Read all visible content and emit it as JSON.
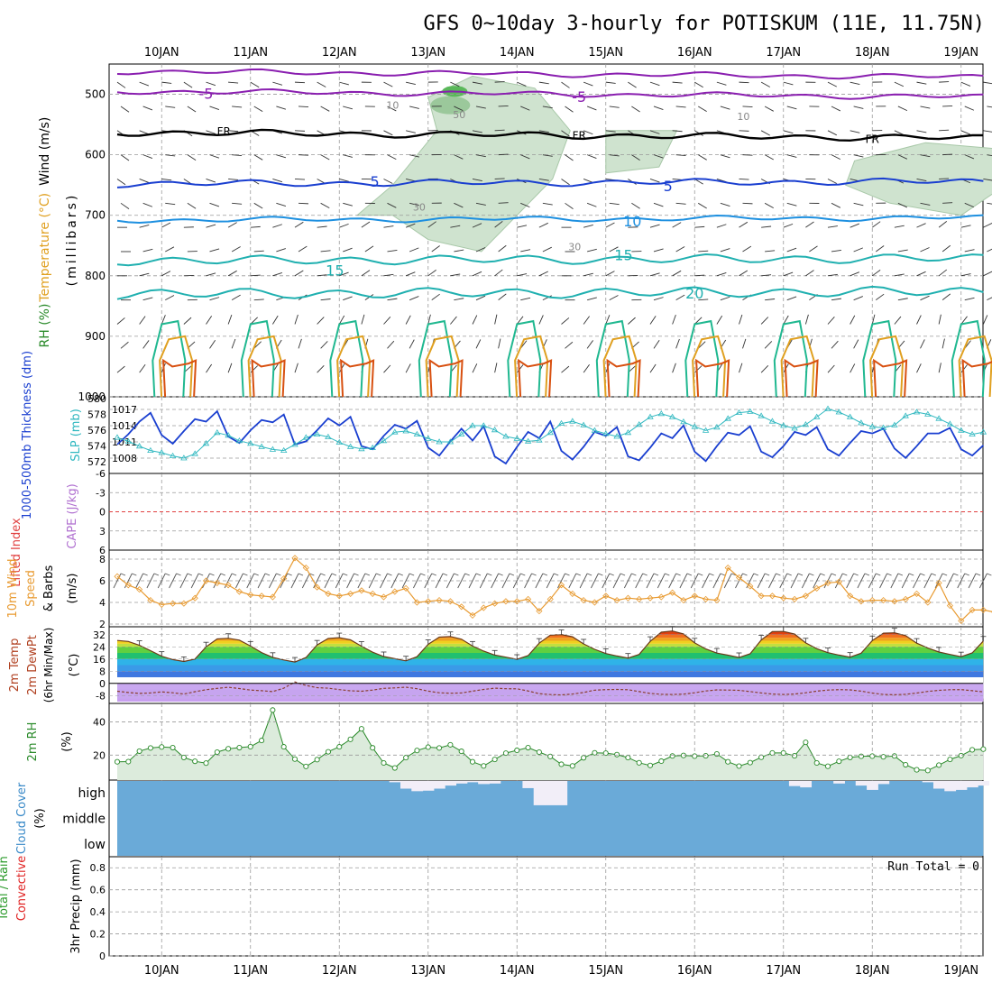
{
  "title": "GFS 0~10day 3-hourly for POTISKUM (11E, 11.75N)",
  "dates": [
    "10JAN",
    "11JAN",
    "12JAN",
    "13JAN",
    "14JAN",
    "15JAN",
    "16JAN",
    "17JAN",
    "18JAN",
    "19JAN"
  ],
  "colors": {
    "frame": "#000000",
    "grid": "#9a9a9a",
    "temp_purple": "#8a1fb0",
    "temp_blue": "#1a3fd0",
    "temp_light": "#1e90e0",
    "temp_teal": "#20b0b0",
    "temp_green": "#20b890",
    "temp_orange": "#e0a020",
    "temp_red": "#d85010",
    "rh_fill": "#cfe3cf",
    "thickness": "#1a3fd0",
    "slp": "#30b8c0",
    "wind10": "#e89a30",
    "cloud": "#6aaad8",
    "cloud_clear": "#f2eef8",
    "rh2m": "#2a8a2a",
    "lifted_zero": "#e04040",
    "cape": "#b070d0",
    "precip_total": "#2a9a2a",
    "precip_conv": "#e02020"
  },
  "chart_data": [
    {
      "type": "heatmap",
      "panel": "upper-air",
      "ylabel_parts": [
        "RH (%)",
        "Temperature (°C)",
        "Wind (m/s)"
      ],
      "yunit_label": "(millibars)",
      "y_ticks": [
        500,
        600,
        700,
        800,
        900,
        1000
      ],
      "ylim": [
        1000,
        450
      ],
      "contour_labels": [
        {
          "label": "-5",
          "level": 500,
          "day": 0.5
        },
        {
          "label": "-5",
          "level": 505,
          "day": 4.7
        },
        {
          "label": "FR",
          "level": 560,
          "day": 0.7
        },
        {
          "label": "FR",
          "level": 567,
          "day": 4.7
        },
        {
          "label": "FR",
          "level": 573,
          "day": 8.0
        },
        {
          "label": "5",
          "level": 645,
          "day": 2.4
        },
        {
          "label": "5",
          "level": 653,
          "day": 5.7
        },
        {
          "label": "10",
          "level": 711,
          "day": 5.3
        },
        {
          "label": "15",
          "level": 792,
          "day": 1.95
        },
        {
          "label": "15",
          "level": 767,
          "day": 5.2
        },
        {
          "label": "20",
          "level": 830,
          "day": 6.0
        },
        {
          "label": "50",
          "level": 532,
          "day": 3.35
        },
        {
          "label": "30",
          "level": 685,
          "day": 2.9
        },
        {
          "label": "30",
          "level": 750,
          "day": 4.65
        },
        {
          "label": "10",
          "level": 535,
          "day": 6.55
        },
        {
          "label": "10",
          "level": 516,
          "day": 2.6
        }
      ]
    },
    {
      "type": "line",
      "panel": "thickness-slp",
      "ylabel_left": "1000-500mb Thickness (dm)",
      "ylabel_right": "SLP (mb)",
      "y_ticks_left": [
        572,
        574,
        576,
        578,
        580
      ],
      "y_ticks_right": [
        1008,
        1011,
        1014,
        1017
      ],
      "ylim_left": [
        571,
        580
      ],
      "series": [
        {
          "name": "1000-500mb Thickness (dm)",
          "axis": "left",
          "values": [
            574.2,
            575.5,
            577.1,
            578.2,
            575.4,
            574.3,
            575.9,
            577.4,
            577.1,
            578.4,
            575.2,
            574.4,
            576.0,
            577.3,
            577.0,
            578.0,
            574.2,
            574.6,
            576.0,
            577.5,
            576.6,
            577.7,
            574.0,
            573.6,
            575.3,
            576.7,
            576.2,
            577.2,
            573.8,
            572.8,
            574.6,
            576.2,
            574.7,
            576.5,
            572.7,
            571.8,
            573.9,
            575.8,
            575.0,
            577.1,
            573.4,
            572.3,
            573.9,
            575.8,
            575.3,
            576.4,
            572.7,
            572.2,
            573.8,
            575.6,
            575.0,
            576.6,
            573.3,
            572.1,
            574.0,
            575.7,
            575.4,
            576.5,
            573.3,
            572.6,
            574.0,
            575.8,
            575.4,
            576.4,
            573.6,
            572.8,
            574.4,
            575.9,
            575.6,
            576.2,
            573.7,
            572.5,
            574.0,
            575.6,
            575.6,
            576.3,
            573.6,
            572.8,
            574.1
          ]
        },
        {
          "name": "SLP (mb)",
          "axis": "right",
          "values": [
            1011.8,
            1011.1,
            1010.2,
            1009.4,
            1009.0,
            1008.4,
            1008.0,
            1008.8,
            1010.7,
            1012.7,
            1012.2,
            1011.2,
            1010.7,
            1010.1,
            1009.6,
            1009.4,
            1010.5,
            1011.8,
            1012.4,
            1011.9,
            1010.9,
            1010.1,
            1009.7,
            1009.9,
            1011.2,
            1012.8,
            1013.0,
            1012.4,
            1011.6,
            1011.0,
            1011.0,
            1012.4,
            1014.0,
            1014.0,
            1013.2,
            1012.0,
            1011.6,
            1011.1,
            1011.3,
            1012.7,
            1014.4,
            1014.8,
            1014.1,
            1013.1,
            1012.5,
            1012.0,
            1012.7,
            1014.2,
            1015.6,
            1016.2,
            1015.6,
            1014.7,
            1013.8,
            1013.1,
            1013.7,
            1015.3,
            1016.4,
            1016.6,
            1015.8,
            1014.8,
            1014.0,
            1013.5,
            1014.2,
            1015.6,
            1017.1,
            1016.5,
            1015.6,
            1014.5,
            1013.8,
            1013.6,
            1014.1,
            1015.8,
            1016.5,
            1016.1,
            1015.3,
            1014.3,
            1013.1,
            1012.4,
            1012.8
          ]
        }
      ]
    },
    {
      "type": "line",
      "panel": "lifted-cape",
      "ylabel_left": "Lifted Index",
      "ylabel_right": "CAPE (J/kg)",
      "y_ticks": [
        -6,
        -3,
        0,
        3,
        6
      ],
      "ylim": [
        -6,
        6
      ],
      "tick_labels": [
        "-6",
        "-3",
        "0",
        "3",
        "6"
      ],
      "series": [
        {
          "name": "Lifted Index",
          "values": []
        },
        {
          "name": "CAPE (J/kg)",
          "values": []
        }
      ]
    },
    {
      "type": "line",
      "panel": "wind10m",
      "ylabel_parts": [
        "10m Wind",
        "Speed",
        "& Barbs",
        "(m/s)"
      ],
      "y_ticks": [
        2,
        4,
        6,
        8
      ],
      "ylim": [
        2,
        8.5
      ],
      "series": [
        {
          "name": "10m Wind Speed",
          "values": [
            6.4,
            5.6,
            5.2,
            4.2,
            3.8,
            3.9,
            3.9,
            4.4,
            6.0,
            5.8,
            5.6,
            5.0,
            4.7,
            4.6,
            4.5,
            6.2,
            8.1,
            7.2,
            5.4,
            4.8,
            4.6,
            4.8,
            5.1,
            4.8,
            4.5,
            5.0,
            5.3,
            4.0,
            4.1,
            4.2,
            4.1,
            3.6,
            2.8,
            3.5,
            3.9,
            4.1,
            4.1,
            4.3,
            3.2,
            4.3,
            5.6,
            4.8,
            4.2,
            4.0,
            4.6,
            4.2,
            4.4,
            4.3,
            4.4,
            4.5,
            4.9,
            4.2,
            4.6,
            4.3,
            4.2,
            7.2,
            6.3,
            5.5,
            4.6,
            4.6,
            4.4,
            4.3,
            4.6,
            5.3,
            5.8,
            5.9,
            4.6,
            4.1,
            4.2,
            4.2,
            4.1,
            4.3,
            4.8,
            4.0,
            5.8,
            3.7,
            2.3,
            3.3,
            3.3,
            3.1,
            2.6
          ]
        }
      ]
    },
    {
      "type": "area",
      "panel": "temp2m",
      "ylabel_parts": [
        "2m Temp",
        "2m DewPt",
        "(6hr Min/Max)",
        "(°C)"
      ],
      "y_ticks": [
        -8,
        0,
        8,
        16,
        24,
        32
      ],
      "ylim": [
        -12,
        36
      ],
      "series": [
        {
          "name": "2m Temp",
          "values": [
            28.2,
            27.5,
            25.0,
            21.5,
            17.8,
            15.6,
            14.4,
            16.0,
            24.0,
            29.2,
            29.6,
            28.4,
            24.5,
            20.2,
            17.1,
            15.4,
            14.0,
            17.0,
            25.2,
            29.5,
            30.0,
            28.6,
            24.4,
            20.5,
            17.6,
            16.2,
            14.8,
            17.5,
            25.6,
            30.4,
            30.8,
            29.0,
            24.5,
            21.2,
            18.6,
            17.2,
            15.8,
            18.2,
            26.4,
            31.7,
            32.1,
            30.6,
            25.9,
            22.4,
            19.6,
            18.0,
            16.6,
            19.0,
            27.6,
            33.6,
            34.4,
            32.5,
            26.6,
            22.6,
            19.9,
            18.5,
            17.0,
            19.4,
            28.5,
            34.0,
            34.1,
            32.4,
            26.6,
            22.8,
            20.2,
            18.6,
            17.2,
            19.8,
            28.1,
            33.0,
            33.2,
            31.4,
            26.4,
            23.2,
            20.6,
            19.0,
            17.5,
            20.0,
            27.8
          ]
        },
        {
          "name": "2m DewPt",
          "values": [
            -5.2,
            -6.0,
            -6.6,
            -6.3,
            -5.6,
            -6.2,
            -7.0,
            -5.5,
            -4.2,
            -3.3,
            -2.6,
            -3.4,
            -4.4,
            -4.8,
            -5.4,
            -3.2,
            0.9,
            -1.4,
            -2.8,
            -3.2,
            -4.1,
            -4.9,
            -5.2,
            -4.4,
            -3.3,
            -3.0,
            -2.5,
            -3.5,
            -5.1,
            -6.2,
            -6.5,
            -6.3,
            -5.1,
            -4.0,
            -3.2,
            -3.5,
            -3.6,
            -5.0,
            -6.8,
            -7.4,
            -7.6,
            -7.0,
            -6.0,
            -4.5,
            -4.1,
            -4.0,
            -4.2,
            -5.4,
            -6.6,
            -7.2,
            -7.3,
            -7.1,
            -6.2,
            -5.0,
            -4.3,
            -4.4,
            -4.6,
            -5.4,
            -6.3,
            -7.0,
            -7.3,
            -7.0,
            -6.2,
            -5.1,
            -4.4,
            -4.1,
            -4.3,
            -5.1,
            -6.4,
            -7.3,
            -7.5,
            -7.2,
            -6.4,
            -5.3,
            -4.6,
            -4.2,
            -4.1,
            -4.8,
            -5.6
          ]
        }
      ]
    },
    {
      "type": "area",
      "panel": "rh2m",
      "ylabel_parts": [
        "2m RH",
        "(%)"
      ],
      "y_ticks": [
        20,
        40
      ],
      "ylim": [
        5,
        50
      ],
      "series": [
        {
          "name": "2m RH",
          "values": [
            16.0,
            16.1,
            22.4,
            24.3,
            24.9,
            24.5,
            18.6,
            16.3,
            15.2,
            21.8,
            23.8,
            24.5,
            25.1,
            28.8,
            47.1,
            25.0,
            17.6,
            13.2,
            17.3,
            22.0,
            25.0,
            29.5,
            35.8,
            24.4,
            15.3,
            12.3,
            18.5,
            22.8,
            24.8,
            24.3,
            26.2,
            22.3,
            16.0,
            13.5,
            17.4,
            21.2,
            22.9,
            24.5,
            21.8,
            19.2,
            14.5,
            13.5,
            18.4,
            21.4,
            21.2,
            20.3,
            18.5,
            15.4,
            13.8,
            16.4,
            19.5,
            19.8,
            19.4,
            19.6,
            20.7,
            16.0,
            13.4,
            15.5,
            18.7,
            21.3,
            21.3,
            19.6,
            27.7,
            15.3,
            13.3,
            16.3,
            18.6,
            19.3,
            19.4,
            19.0,
            19.5,
            14.2,
            11.2,
            10.8,
            14.0,
            17.4,
            19.7,
            23.2,
            23.6
          ]
        }
      ]
    },
    {
      "type": "area",
      "panel": "cloud",
      "ylabel_parts": [
        "Cloud Cover",
        "(%)"
      ],
      "layer_labels": [
        "high",
        "middle",
        "low"
      ],
      "series": [
        {
          "name": "high cloud clear fraction",
          "values": [
            0.0,
            0.0,
            0.0,
            0.0,
            0.0,
            0.0,
            0.0,
            0.0,
            0.0,
            0.0,
            0.0,
            0.0,
            0.0,
            0.0,
            0.0,
            0.0,
            0.0,
            0.0,
            0.0,
            0.0,
            0.0,
            0.0,
            0.0,
            0.0,
            0.0,
            0.05,
            0.3,
            0.4,
            0.38,
            0.3,
            0.18,
            0.1,
            0.05,
            0.12,
            0.1,
            0.0,
            0.0,
            0.28,
            0.95,
            0.95,
            0.95,
            0.0,
            0.0,
            0.0,
            0.0,
            0.0,
            0.0,
            0.0,
            0.0,
            0.0,
            0.0,
            0.0,
            0.0,
            0.0,
            0.0,
            0.0,
            0.0,
            0.0,
            0.0,
            0.0,
            0.0,
            0.2,
            0.25,
            0.0,
            0.0,
            0.1,
            0.0,
            0.18,
            0.35,
            0.12,
            0.0,
            0.0,
            0.0,
            0.05,
            0.3,
            0.4,
            0.35,
            0.25,
            0.18
          ]
        }
      ]
    },
    {
      "type": "bar",
      "panel": "precip",
      "ylabel_parts": [
        "Total / Rain",
        "Convective",
        "3hr Precip (mm)"
      ],
      "y_ticks": [
        0,
        0.2,
        0.4,
        0.6,
        0.8
      ],
      "tick_labels": [
        "0",
        "0.2",
        "0.4",
        "0.6",
        "0.8"
      ],
      "ylim": [
        0,
        0.9
      ],
      "annotation": "Run Total = 0",
      "series": [
        {
          "name": "3hr Precip",
          "values": []
        }
      ]
    }
  ]
}
